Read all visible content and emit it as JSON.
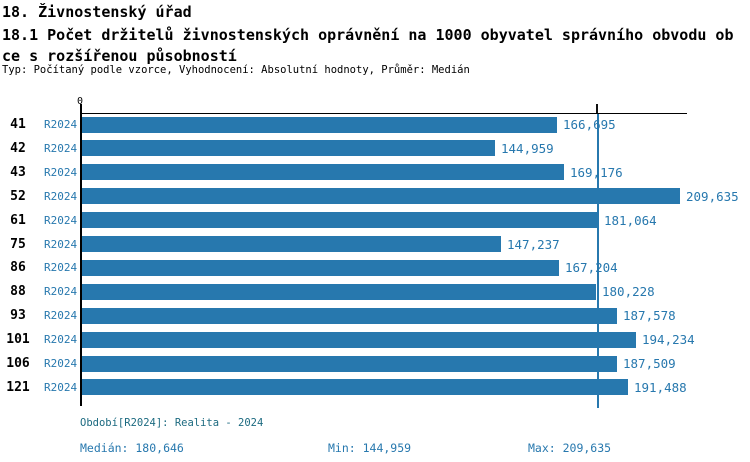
{
  "header": {
    "title": "18. Živnostenský úřad",
    "subtitle_line1": "18.1 Počet držitelů živnostenských oprávnění na 1000 obyvatel správního obvodu ob",
    "subtitle_line2": "ce s rozšířenou působností",
    "meta": "Typ: Počítaný podle vzorce, Vyhodnocení: Absolutní hodnoty, Průměr: Medián"
  },
  "chart_data": {
    "type": "bar",
    "orientation": "horizontal",
    "title": "18.1 Počet držitelů živnostenských oprávnění na 1000 obyvatel správního obvodu obce s rozšířenou působností",
    "categories": [
      "41",
      "42",
      "43",
      "52",
      "61",
      "75",
      "86",
      "88",
      "93",
      "101",
      "106",
      "121"
    ],
    "series": [
      {
        "name": "R2024",
        "values": [
          166.695,
          144.959,
          169.176,
          209.635,
          181.064,
          147.237,
          167.204,
          180.228,
          187.578,
          194.234,
          187.509,
          191.488
        ]
      }
    ],
    "value_labels": [
      "166,695",
      "144,959",
      "169,176",
      "209,635",
      "181,064",
      "147,237",
      "167,204",
      "180,228",
      "187,578",
      "194,234",
      "187,509",
      "191,488"
    ],
    "xlim": [
      0,
      209.635
    ],
    "zero_tick_label": "0",
    "median_line": 180.646,
    "grid": false,
    "legend": false
  },
  "footer": {
    "period": "Období[R2024]: Realita - 2024",
    "median": "Medián: 180,646",
    "min": "Min: 144,959",
    "max": "Max: 209,635"
  },
  "colors": {
    "bar": "#2778ae",
    "value_text": "#2778ae",
    "period_text": "#1c6a80",
    "axis": "#000000",
    "text": "#000000"
  }
}
